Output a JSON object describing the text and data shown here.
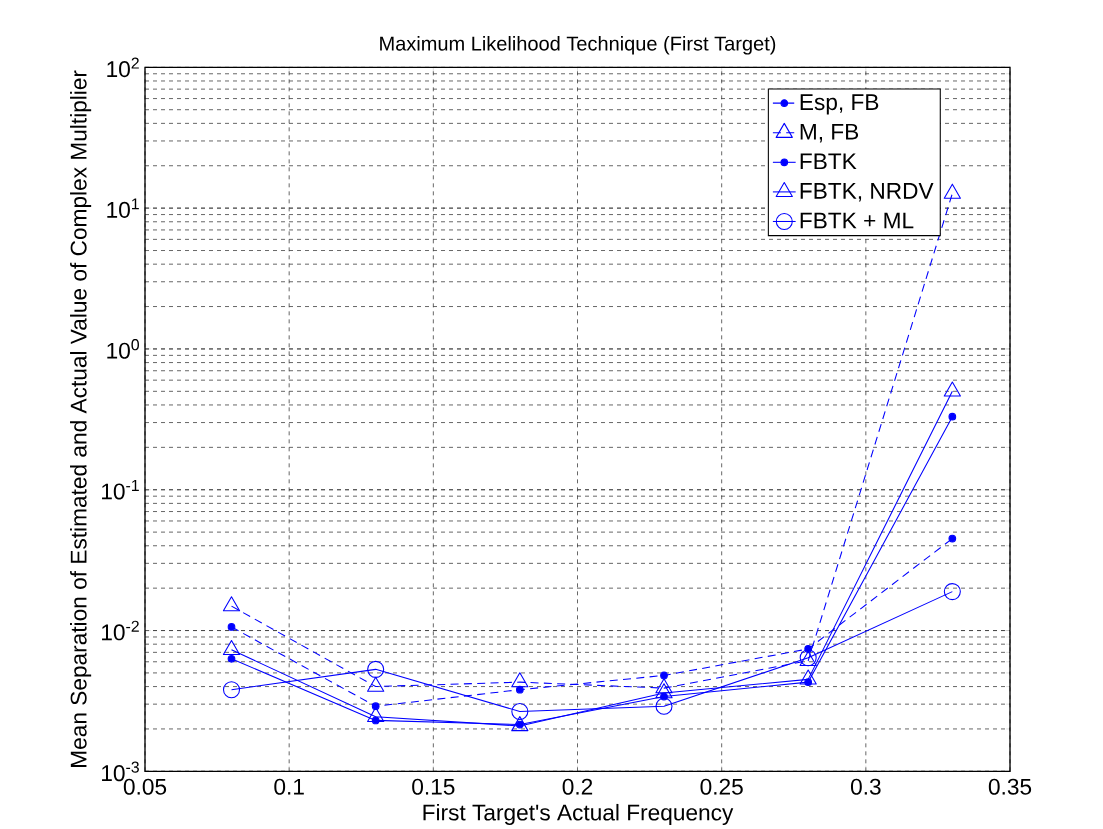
{
  "chart_data": {
    "type": "line",
    "title": "Maximum Likelihood Technique (First Target)",
    "xlabel": "First Target's Actual Frequency",
    "ylabel": "Mean Separation of Estimated and Actual Value of Complex Multiplier",
    "x": [
      0.08,
      0.13,
      0.18,
      0.23,
      0.28,
      0.33
    ],
    "series": [
      {
        "name": "Esp, FB",
        "color": "#0000ff",
        "marker": "point",
        "line_style": "dashed",
        "values": [
          0.0106,
          0.0029,
          0.0038,
          0.0048,
          0.0074,
          0.045
        ]
      },
      {
        "name": "M, FB",
        "color": "#0000ff",
        "marker": "triangle",
        "line_style": "dashed",
        "values": [
          0.0149,
          0.004,
          0.0043,
          0.0039,
          0.0061,
          12.7
        ]
      },
      {
        "name": "FBTK",
        "color": "#0000ff",
        "marker": "point",
        "line_style": "solid",
        "values": [
          0.0063,
          0.0023,
          0.00215,
          0.0034,
          0.0043,
          0.33
        ]
      },
      {
        "name": "FBTK, NRDV",
        "color": "#0000ff",
        "marker": "triangle",
        "line_style": "solid",
        "values": [
          0.0073,
          0.00244,
          0.0021,
          0.0036,
          0.0045,
          0.5
        ]
      },
      {
        "name": "FBTK + ML",
        "color": "#0000ff",
        "marker": "circle",
        "line_style": "solid",
        "values": [
          0.0038,
          0.0053,
          0.00266,
          0.0029,
          0.0064,
          0.0189
        ]
      }
    ],
    "log": "y",
    "grid": true,
    "legend": "top right",
    "xlim": [
      0.05,
      0.35
    ],
    "ylim": [
      0.001,
      100
    ],
    "xticks": [
      0.05,
      0.1,
      0.15,
      0.2,
      0.25,
      0.3,
      0.35
    ],
    "yticks": [
      {
        "value": 0.001,
        "label": "10$^{-3}$"
      },
      {
        "value": 0.01,
        "label": "10$^{-2}$"
      },
      {
        "value": 0.1,
        "label": "10$^{-1}$"
      },
      {
        "value": 1,
        "label": "10$^{0}$"
      },
      {
        "value": 10,
        "label": "10$^{1}$"
      },
      {
        "value": 100,
        "label": "10$^{2}$"
      }
    ]
  }
}
